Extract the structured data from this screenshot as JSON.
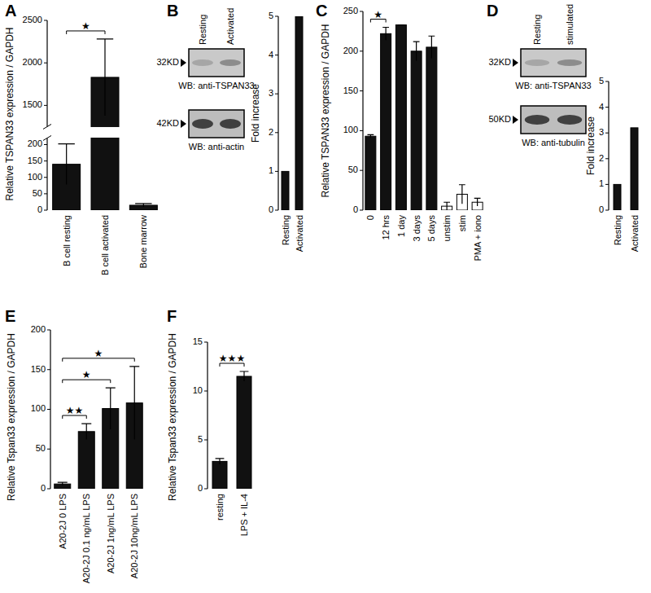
{
  "chart_data": [
    {
      "type": "bar",
      "title": "A",
      "y_label": "Relative TSPAN33 expression / GAPDH",
      "categories": [
        "B cell resting",
        "B cell activated",
        "Bone marrow"
      ],
      "values": [
        140,
        1830,
        15
      ],
      "errors": [
        62,
        450,
        5
      ],
      "color": "#111111",
      "ylim": [
        0,
        2500
      ],
      "ybreak": [
        220,
        1250
      ],
      "yticks": [
        0,
        50,
        100,
        150,
        200,
        1500,
        2000,
        2500
      ],
      "annotations": [
        {
          "label": "★",
          "between": [
            "B cell resting",
            "B cell activated"
          ]
        }
      ]
    },
    {
      "type": "bar",
      "y_label": "Fold increase",
      "categories": [
        "Resting",
        "Activated"
      ],
      "values": [
        1,
        5
      ],
      "color": "#111111",
      "ylim": [
        0,
        5
      ],
      "yticks": [
        0,
        1,
        2,
        3,
        4,
        5
      ]
    },
    {
      "type": "bar",
      "title": "C",
      "y_label": "Relative TSPAN33 expression / GAPDH",
      "categories": [
        "0",
        "12 hrs",
        "1 day",
        "3 days",
        "5 days",
        "unstim",
        "stim",
        "PMA + iono"
      ],
      "values": [
        93,
        222,
        233,
        200,
        205,
        5,
        20,
        10
      ],
      "errors": [
        2,
        8,
        0,
        12,
        14,
        5,
        12,
        5
      ],
      "colors": [
        "#111111",
        "#111111",
        "#111111",
        "#111111",
        "#111111",
        "#ffffff",
        "#ffffff",
        "#ffffff"
      ],
      "ylim": [
        0,
        250
      ],
      "yticks": [
        0,
        50,
        100,
        150,
        200,
        250
      ],
      "annotations": [
        {
          "label": "★",
          "between": [
            "0",
            "12 hrs"
          ]
        }
      ]
    },
    {
      "type": "bar",
      "y_label": "Fold increase",
      "categories": [
        "Resting",
        "Activated"
      ],
      "values": [
        1,
        3.2
      ],
      "color": "#111111",
      "ylim": [
        0,
        5
      ],
      "yticks": [
        0,
        1,
        2,
        3,
        4,
        5
      ]
    },
    {
      "type": "bar",
      "title": "E",
      "y_label": "Relative Tspan33 expression / GAPDH",
      "categories": [
        "A20-2J 0 LPS",
        "A20-2J 0.1 ng/mL LPS",
        "A20-2J 1ng/mL LPS",
        "A20-2J 10ng/mL LPS"
      ],
      "values": [
        6,
        72,
        101,
        108
      ],
      "errors": [
        2,
        10,
        26,
        46
      ],
      "color": "#111111",
      "ylim": [
        0,
        200
      ],
      "yticks": [
        0,
        50,
        100,
        150,
        200
      ],
      "annotations": [
        {
          "label": "★★",
          "between": [
            "A20-2J 0 LPS",
            "A20-2J 0.1 ng/mL LPS"
          ]
        },
        {
          "label": "★",
          "between": [
            "A20-2J 0 LPS",
            "A20-2J 1ng/mL LPS"
          ]
        },
        {
          "label": "★",
          "between": [
            "A20-2J 0 LPS",
            "A20-2J 10ng/mL LPS"
          ]
        }
      ]
    },
    {
      "type": "bar",
      "title": "F",
      "y_label": "Relative Tspan33 expression / GAPDH",
      "categories": [
        "resting",
        "LPS + IL-4"
      ],
      "values": [
        2.8,
        11.5
      ],
      "errors": [
        0.3,
        0.5
      ],
      "color": "#111111",
      "ylim": [
        0,
        15
      ],
      "yticks": [
        0,
        5,
        10,
        15
      ],
      "annotations": [
        {
          "label": "★★★",
          "between": [
            "resting",
            "LPS + IL-4"
          ]
        }
      ]
    }
  ],
  "blots": [
    {
      "panel": "B",
      "lanes": [
        "Resting",
        "Activated"
      ],
      "rows": [
        {
          "size": "32KD",
          "antibody": "WB: anti-TSPAN33"
        },
        {
          "size": "42KD",
          "antibody": "WB: anti-actin"
        }
      ]
    },
    {
      "panel": "D",
      "lanes": [
        "Resting",
        "stimulated"
      ],
      "rows": [
        {
          "size": "32KD",
          "antibody": "WB: anti-TSPAN33"
        },
        {
          "size": "50KD",
          "antibody": "WB: anti-tubulin"
        }
      ]
    }
  ]
}
